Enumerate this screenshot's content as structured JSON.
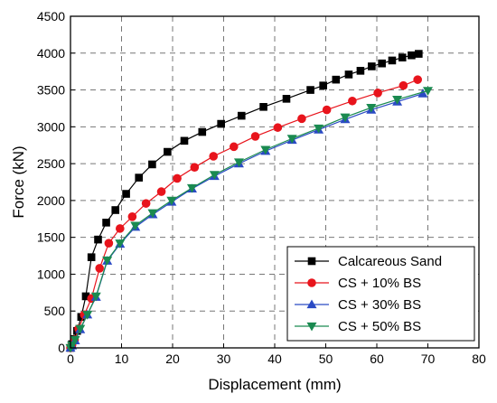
{
  "chart_data": {
    "type": "line",
    "title": "",
    "xlabel": "Displacement (mm)",
    "ylabel": "Force (kN)",
    "xlim": [
      0,
      80
    ],
    "ylim": [
      0,
      4500
    ],
    "x_ticks": [
      0,
      10,
      20,
      30,
      40,
      50,
      60,
      70,
      80
    ],
    "y_ticks": [
      0,
      500,
      1000,
      1500,
      2000,
      2500,
      3000,
      3500,
      4000,
      4500
    ],
    "grid": "on (dashed)",
    "legend_position": "bottom-right",
    "series": [
      {
        "name": "Calcareous Sand",
        "color": "#000000",
        "marker": "square",
        "x": [
          0,
          0.3,
          0.7,
          1.3,
          2.1,
          3.0,
          4.1,
          5.4,
          7.0,
          8.8,
          10.9,
          13.4,
          16.0,
          19.0,
          22.3,
          25.8,
          29.5,
          33.5,
          37.8,
          42.3,
          47.0,
          49.5,
          52.0,
          54.5,
          56.8,
          59.0,
          61.0,
          63.0,
          65.0,
          66.8,
          68.2
        ],
        "values": [
          0,
          50,
          120,
          230,
          420,
          700,
          1230,
          1470,
          1700,
          1870,
          2090,
          2310,
          2490,
          2660,
          2810,
          2930,
          3040,
          3150,
          3270,
          3380,
          3500,
          3560,
          3640,
          3710,
          3760,
          3820,
          3860,
          3900,
          3940,
          3970,
          3990
        ]
      },
      {
        "name": "CS + 10% BS",
        "color": "#e8141c",
        "marker": "circle",
        "x": [
          0,
          0.3,
          0.8,
          1.6,
          2.7,
          4.1,
          5.7,
          7.5,
          9.7,
          12.1,
          14.8,
          17.8,
          20.9,
          24.3,
          28.0,
          32.0,
          36.2,
          40.6,
          45.3,
          50.2,
          55.2,
          60.2,
          65.2,
          68.0
        ],
        "values": [
          0,
          40,
          110,
          260,
          450,
          670,
          1080,
          1420,
          1620,
          1780,
          1960,
          2120,
          2300,
          2450,
          2600,
          2730,
          2870,
          2990,
          3110,
          3230,
          3350,
          3460,
          3560,
          3640
        ]
      },
      {
        "name": "CS + 30% BS",
        "color": "#2a4ac4",
        "marker": "triangle-up",
        "x": [
          0,
          0.3,
          0.9,
          1.9,
          3.3,
          5.0,
          7.2,
          9.7,
          12.7,
          16.1,
          19.8,
          23.8,
          28.2,
          33.0,
          38.2,
          43.4,
          48.6,
          53.8,
          58.9,
          64.0,
          69.0
        ],
        "values": [
          0,
          30,
          100,
          250,
          450,
          690,
          1180,
          1410,
          1640,
          1810,
          1980,
          2160,
          2330,
          2500,
          2670,
          2820,
          2960,
          3100,
          3230,
          3340,
          3450
        ]
      },
      {
        "name": "CS + 50% BS",
        "color": "#1a8a50",
        "marker": "triangle-down",
        "x": [
          0,
          0.3,
          0.9,
          1.9,
          3.3,
          5.0,
          7.2,
          9.7,
          12.7,
          16.1,
          19.8,
          23.8,
          28.2,
          33.0,
          38.2,
          43.4,
          48.6,
          53.8,
          58.9,
          64.0,
          70.0
        ],
        "values": [
          0,
          35,
          110,
          260,
          450,
          700,
          1190,
          1420,
          1660,
          1830,
          2000,
          2170,
          2350,
          2520,
          2690,
          2840,
          2980,
          3130,
          3260,
          3370,
          3490
        ]
      }
    ]
  }
}
